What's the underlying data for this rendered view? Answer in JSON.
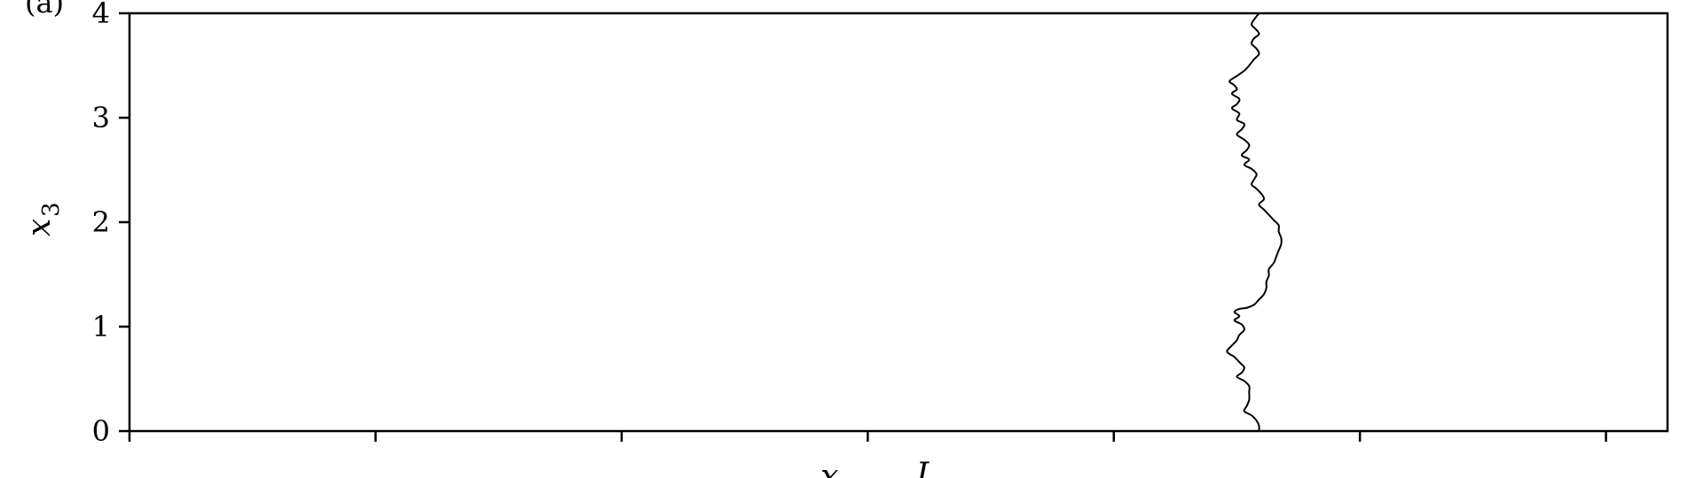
{
  "chart_data": {
    "type": "line",
    "panel_label": "(a)",
    "xlabel": "x",
    "xlabel_fragment": "L",
    "ylabel": "x",
    "ylabel_subscript": "3",
    "ylim": [
      0,
      4
    ],
    "yticks": [
      0,
      1,
      2,
      3,
      4
    ],
    "xlim": [
      0,
      6.25
    ],
    "xticks": [
      0,
      1,
      2,
      3,
      4,
      5,
      6
    ],
    "xtick_labels_visible": false,
    "grid": false,
    "series": [
      {
        "color": "#000000",
        "points": [
          [
            4.59,
            4.0
          ],
          [
            4.57,
            3.94
          ],
          [
            4.56,
            3.89
          ],
          [
            4.58,
            3.84
          ],
          [
            4.59,
            3.8
          ],
          [
            4.57,
            3.76
          ],
          [
            4.56,
            3.71
          ],
          [
            4.58,
            3.66
          ],
          [
            4.59,
            3.61
          ],
          [
            4.57,
            3.56
          ],
          [
            4.55,
            3.5
          ],
          [
            4.53,
            3.45
          ],
          [
            4.5,
            3.4
          ],
          [
            4.47,
            3.35
          ],
          [
            4.49,
            3.31
          ],
          [
            4.5,
            3.27
          ],
          [
            4.48,
            3.23
          ],
          [
            4.51,
            3.18
          ],
          [
            4.5,
            3.13
          ],
          [
            4.48,
            3.09
          ],
          [
            4.51,
            3.04
          ],
          [
            4.5,
            2.98
          ],
          [
            4.53,
            2.94
          ],
          [
            4.52,
            2.89
          ],
          [
            4.5,
            2.84
          ],
          [
            4.53,
            2.79
          ],
          [
            4.55,
            2.74
          ],
          [
            4.54,
            2.69
          ],
          [
            4.52,
            2.64
          ],
          [
            4.55,
            2.6
          ],
          [
            4.53,
            2.55
          ],
          [
            4.56,
            2.51
          ],
          [
            4.58,
            2.46
          ],
          [
            4.57,
            2.41
          ],
          [
            4.56,
            2.36
          ],
          [
            4.58,
            2.32
          ],
          [
            4.6,
            2.27
          ],
          [
            4.61,
            2.22
          ],
          [
            4.59,
            2.17
          ],
          [
            4.61,
            2.12
          ],
          [
            4.63,
            2.07
          ],
          [
            4.65,
            2.02
          ],
          [
            4.67,
            1.97
          ],
          [
            4.67,
            1.91
          ],
          [
            4.68,
            1.85
          ],
          [
            4.68,
            1.79
          ],
          [
            4.67,
            1.73
          ],
          [
            4.66,
            1.67
          ],
          [
            4.65,
            1.61
          ],
          [
            4.63,
            1.55
          ],
          [
            4.63,
            1.49
          ],
          [
            4.62,
            1.43
          ],
          [
            4.62,
            1.37
          ],
          [
            4.61,
            1.31
          ],
          [
            4.59,
            1.26
          ],
          [
            4.57,
            1.21
          ],
          [
            4.54,
            1.18
          ],
          [
            4.51,
            1.17
          ],
          [
            4.49,
            1.14
          ],
          [
            4.51,
            1.1
          ],
          [
            4.49,
            1.06
          ],
          [
            4.52,
            1.02
          ],
          [
            4.53,
            0.97
          ],
          [
            4.51,
            0.92
          ],
          [
            4.5,
            0.87
          ],
          [
            4.48,
            0.82
          ],
          [
            4.46,
            0.76
          ],
          [
            4.49,
            0.71
          ],
          [
            4.51,
            0.66
          ],
          [
            4.53,
            0.61
          ],
          [
            4.52,
            0.56
          ],
          [
            4.5,
            0.52
          ],
          [
            4.53,
            0.48
          ],
          [
            4.55,
            0.43
          ],
          [
            4.55,
            0.37
          ],
          [
            4.55,
            0.3
          ],
          [
            4.54,
            0.24
          ],
          [
            4.53,
            0.19
          ],
          [
            4.56,
            0.15
          ],
          [
            4.58,
            0.1
          ],
          [
            4.59,
            0.05
          ],
          [
            4.59,
            0.0
          ]
        ]
      }
    ]
  }
}
